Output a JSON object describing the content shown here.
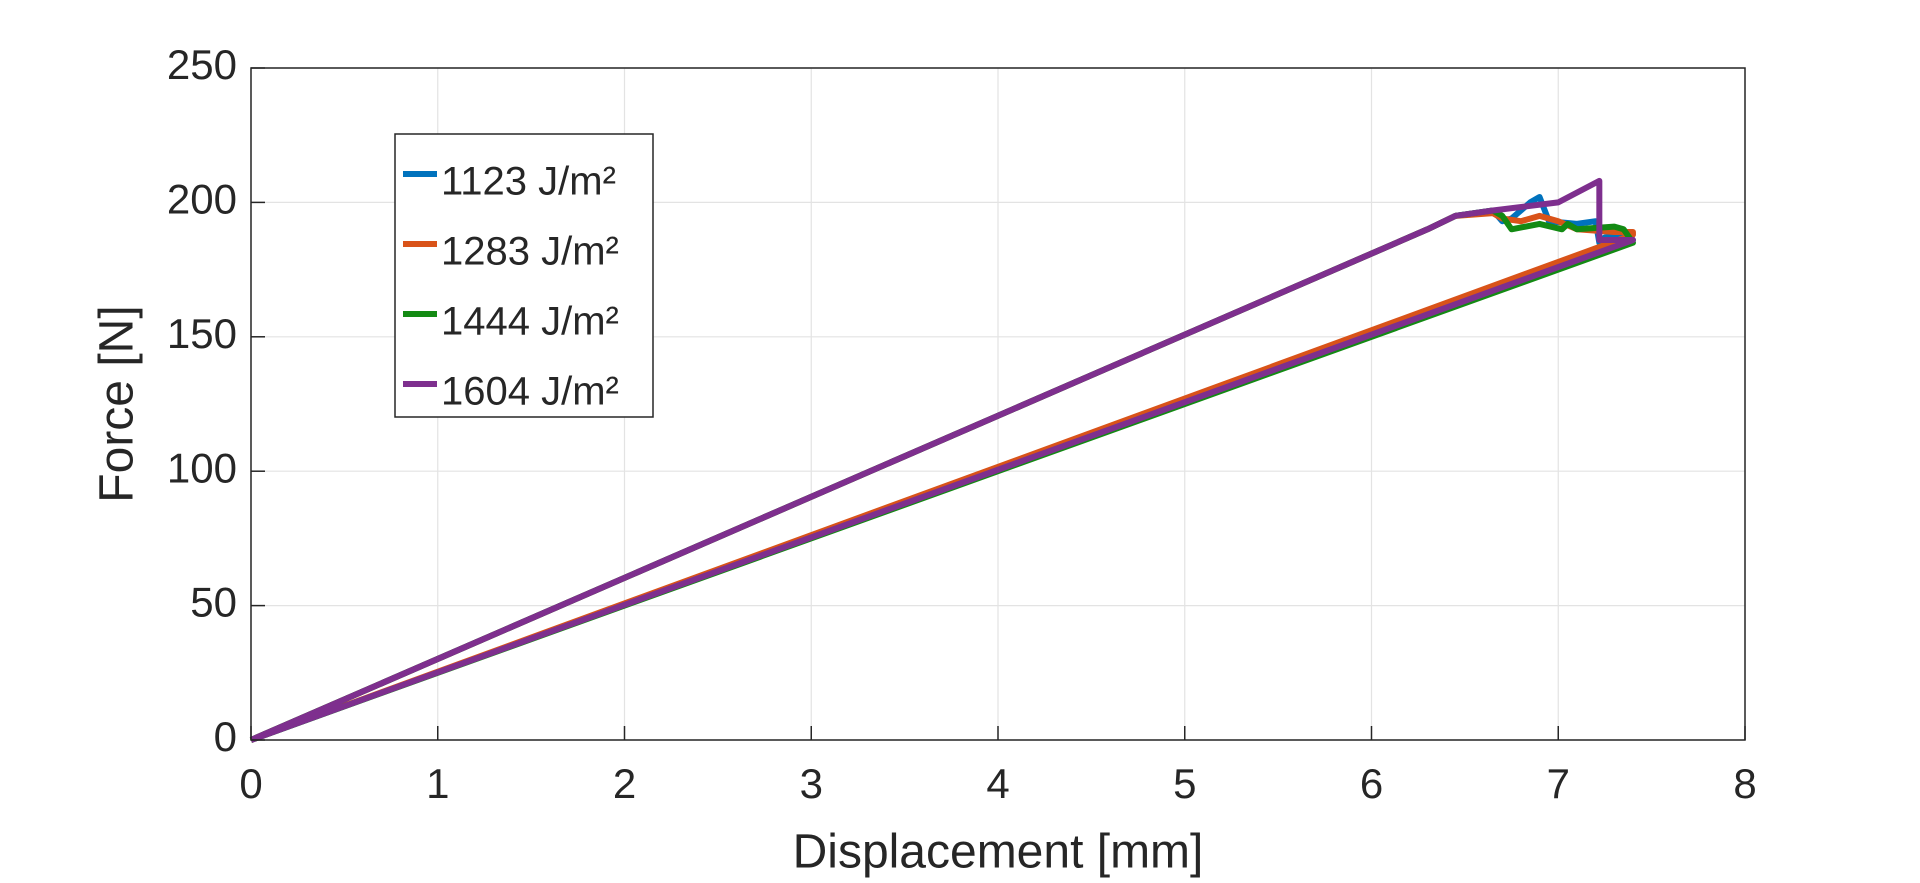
{
  "chart_data": {
    "type": "line",
    "xlabel": "Displacement [mm]",
    "ylabel": "Force [N]",
    "xlim": [
      0,
      8
    ],
    "ylim": [
      0,
      250
    ],
    "xticks": [
      0,
      1,
      2,
      3,
      4,
      5,
      6,
      7,
      8
    ],
    "yticks": [
      0,
      50,
      100,
      150,
      200,
      250
    ],
    "grid": true,
    "legend": "upper left",
    "series": [
      {
        "name": "1123 J/m²",
        "color": "#0072bd",
        "x": [
          0,
          7.4,
          7.38,
          7.25,
          7.22,
          7.2,
          7.1,
          6.95,
          6.9,
          6.85,
          6.75,
          6.7,
          6.65,
          6.45,
          6.3,
          0
        ],
        "values": [
          0,
          186,
          188,
          187,
          185,
          193,
          192,
          193,
          202,
          200,
          194,
          193,
          197,
          195,
          190,
          0
        ]
      },
      {
        "name": "1283 J/m²",
        "color": "#d95319",
        "x": [
          0,
          7.4,
          7.4,
          7.3,
          7.1,
          7.0,
          6.9,
          6.8,
          6.7,
          6.65,
          6.45,
          6.3,
          0
        ],
        "values": [
          0,
          188,
          189,
          189,
          190,
          193,
          195,
          193,
          194,
          196,
          195,
          190,
          0
        ]
      },
      {
        "name": "1444 J/m²",
        "color": "#138a13",
        "x": [
          0,
          7.4,
          7.35,
          7.3,
          7.1,
          7.05,
          7.02,
          6.9,
          6.75,
          6.7,
          6.65,
          6.45,
          6.3,
          0
        ],
        "values": [
          0,
          185,
          190,
          191,
          190,
          192,
          190,
          192,
          190,
          195,
          197,
          195,
          190,
          0
        ]
      },
      {
        "name": "1604 J/m²",
        "color": "#7e2f8e",
        "x": [
          0,
          7.4,
          7.22,
          7.22,
          7.0,
          6.65,
          6.45,
          6.3,
          0
        ],
        "values": [
          0,
          186,
          186,
          208,
          200,
          197,
          195,
          190,
          0
        ]
      }
    ]
  }
}
